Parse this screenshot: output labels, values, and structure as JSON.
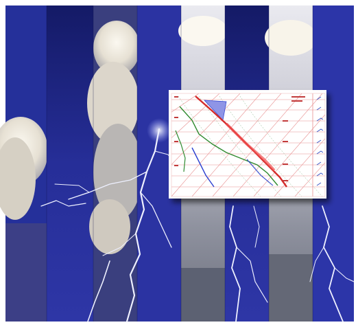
{
  "scene": {
    "subject": "storm-clouds-lightning-collage",
    "strip_count": 8,
    "chart_inset": {
      "kind": "skew-t-thermodynamic-diagram",
      "series_colors": {
        "temperature": "#d42a2a",
        "dewpoint": "#2f8a2f",
        "parcel": "#2a3fd0",
        "isotherms": "#e88f8f",
        "wind_barbs": "#3d59c8"
      }
    }
  },
  "colors": {
    "sky_dark": "#1b1f78",
    "sky_mid": "#3037a8",
    "sky_light": "#5a66cf",
    "cloud_light": "#f1ece2",
    "cloud_shadow": "#8c8c98",
    "lightning": "#eef0ff",
    "paper": "#ffffff"
  }
}
